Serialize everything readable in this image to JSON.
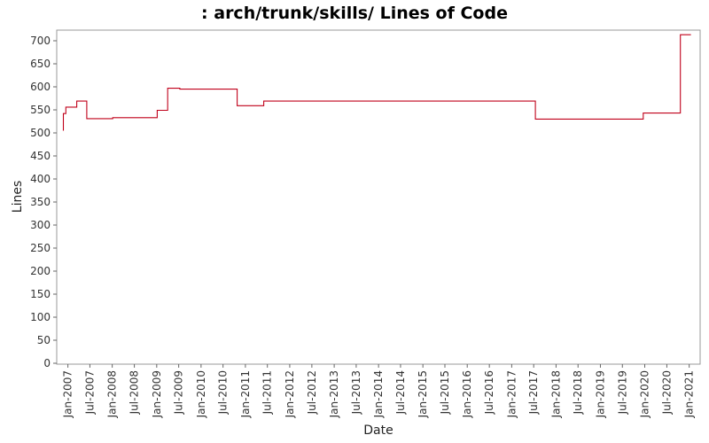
{
  "chart_data": {
    "type": "line",
    "title": ": arch/trunk/skills/ Lines of Code",
    "xlabel": "Date",
    "ylabel": "Lines",
    "ylim": [
      0,
      720
    ],
    "xlim": [
      "2006-10-01",
      "2021-04-01"
    ],
    "yticks": [
      0,
      50,
      100,
      150,
      200,
      250,
      300,
      350,
      400,
      450,
      500,
      550,
      600,
      650,
      700
    ],
    "xticks": [
      "Jan-2007",
      "Jul-2007",
      "Jan-2008",
      "Jul-2008",
      "Jan-2009",
      "Jul-2009",
      "Jan-2010",
      "Jul-2010",
      "Jan-2011",
      "Jul-2011",
      "Jan-2012",
      "Jul-2012",
      "Jan-2013",
      "Jul-2013",
      "Jan-2014",
      "Jul-2014",
      "Jan-2015",
      "Jul-2015",
      "Jan-2016",
      "Jul-2016",
      "Jan-2017",
      "Jul-2017",
      "Jan-2018",
      "Jul-2018",
      "Jan-2019",
      "Jul-2019",
      "Jan-2020",
      "Jul-2020",
      "Jan-2021"
    ],
    "grid": false,
    "line_color": "#c0001a",
    "series": [
      {
        "step": true,
        "points": [
          [
            "2006-11-20",
            506
          ],
          [
            "2006-11-25",
            542
          ],
          [
            "2006-12-15",
            556
          ],
          [
            "2007-03-15",
            569
          ],
          [
            "2007-06-05",
            531
          ],
          [
            "2008-01-05",
            533
          ],
          [
            "2009-01-05",
            549
          ],
          [
            "2009-04-01",
            597
          ],
          [
            "2009-07-10",
            595
          ],
          [
            "2010-10-25",
            559
          ],
          [
            "2011-06-01",
            569
          ],
          [
            "2017-07-15",
            530
          ],
          [
            "2019-12-20",
            543
          ],
          [
            "2020-10-20",
            713
          ]
        ],
        "end": "2021-01-15"
      }
    ]
  }
}
